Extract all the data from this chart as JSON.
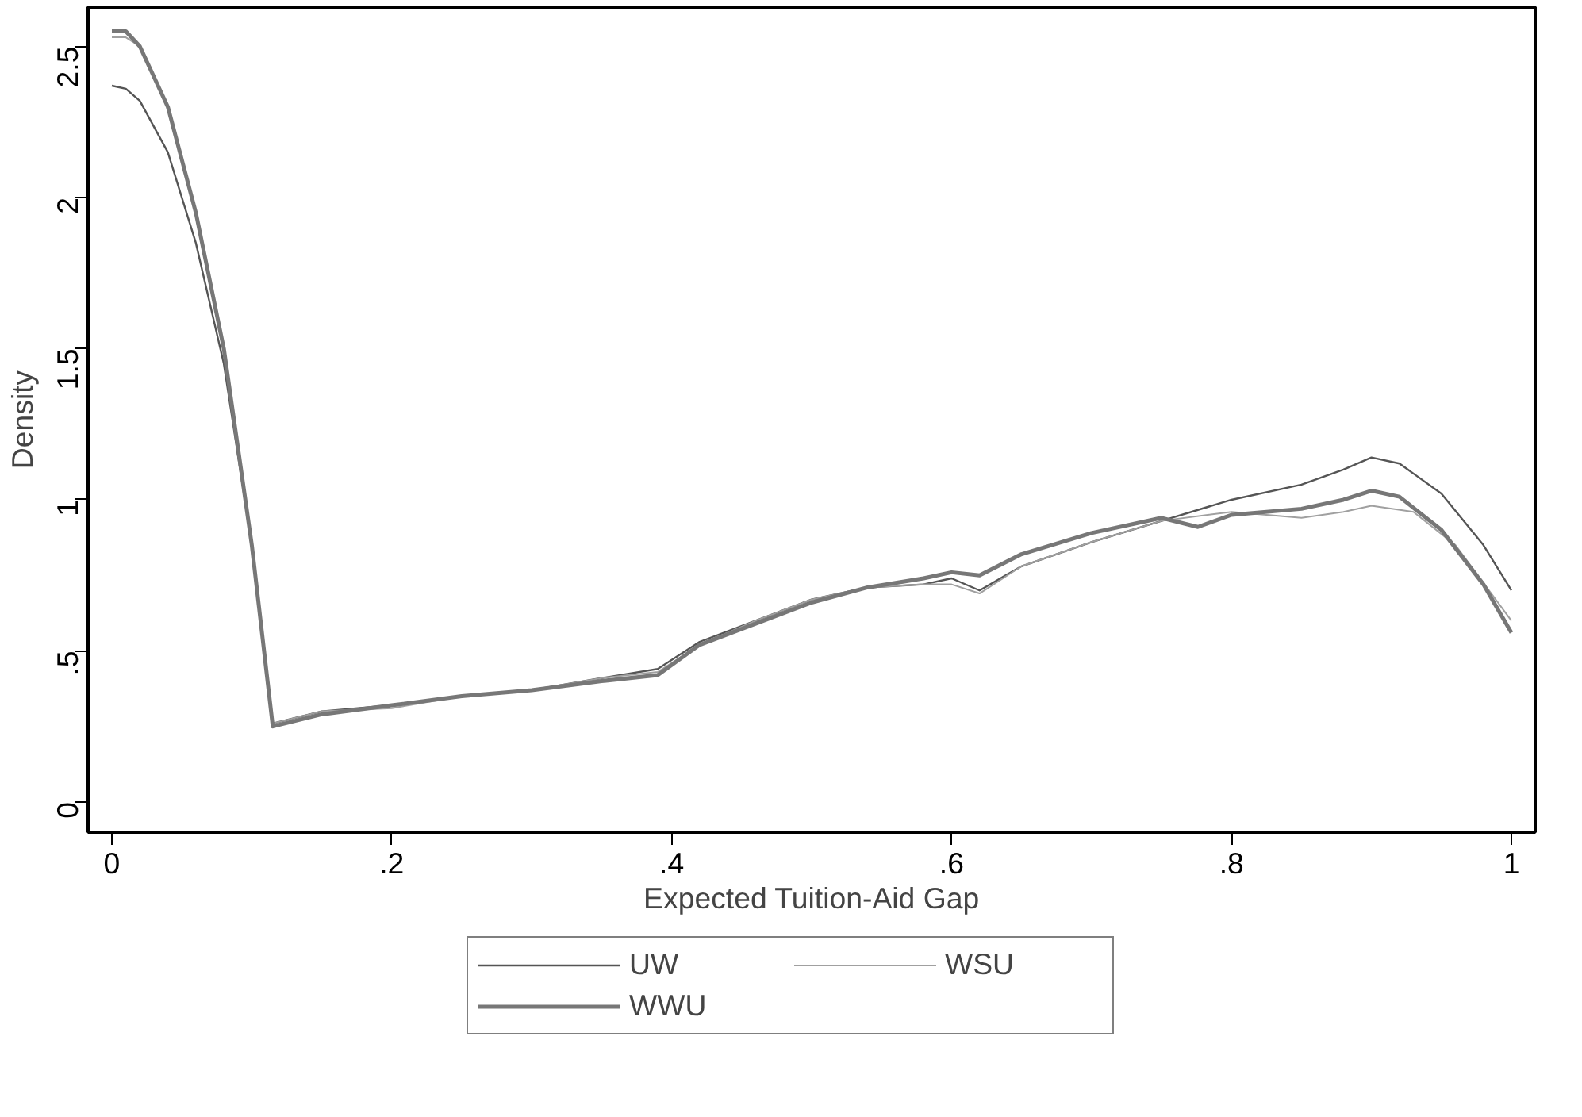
{
  "chart_data": {
    "type": "line",
    "xlabel": "Expected Tuition-Aid Gap",
    "ylabel": "Density",
    "xlim": [
      -0.017,
      1.017
    ],
    "ylim": [
      -0.1,
      2.63
    ],
    "xticks": [
      {
        "value": 0,
        "label": "0"
      },
      {
        "value": 0.2,
        "label": ".2"
      },
      {
        "value": 0.4,
        "label": ".4"
      },
      {
        "value": 0.6,
        "label": ".6"
      },
      {
        "value": 0.8,
        "label": ".8"
      },
      {
        "value": 1,
        "label": "1"
      }
    ],
    "yticks": [
      {
        "value": 0,
        "label": "0"
      },
      {
        "value": 0.5,
        "label": ".5"
      },
      {
        "value": 1,
        "label": "1"
      },
      {
        "value": 1.5,
        "label": "1.5"
      },
      {
        "value": 2,
        "label": "2"
      },
      {
        "value": 2.5,
        "label": "2.5"
      }
    ],
    "grid": false,
    "legend": "bottom",
    "line_style": "solid",
    "marker": "none",
    "series": [
      {
        "name": "UW",
        "color": "#555555",
        "x": [
          0,
          0.01,
          0.02,
          0.04,
          0.06,
          0.08,
          0.1,
          0.115,
          0.15,
          0.2,
          0.25,
          0.3,
          0.35,
          0.39,
          0.42,
          0.46,
          0.5,
          0.54,
          0.58,
          0.6,
          0.62,
          0.65,
          0.7,
          0.75,
          0.8,
          0.85,
          0.88,
          0.9,
          0.92,
          0.95,
          0.98,
          1.0
        ],
        "values": [
          2.37,
          2.36,
          2.32,
          2.15,
          1.85,
          1.45,
          0.85,
          0.26,
          0.3,
          0.32,
          0.35,
          0.37,
          0.41,
          0.44,
          0.53,
          0.6,
          0.67,
          0.71,
          0.72,
          0.74,
          0.7,
          0.78,
          0.86,
          0.93,
          1.0,
          1.05,
          1.1,
          1.14,
          1.12,
          1.02,
          0.85,
          0.7
        ]
      },
      {
        "name": "WSU",
        "color": "#a0a0a0",
        "x": [
          0,
          0.01,
          0.02,
          0.04,
          0.06,
          0.08,
          0.1,
          0.115,
          0.15,
          0.2,
          0.25,
          0.3,
          0.35,
          0.39,
          0.42,
          0.46,
          0.5,
          0.54,
          0.58,
          0.6,
          0.62,
          0.65,
          0.7,
          0.75,
          0.8,
          0.85,
          0.88,
          0.9,
          0.93,
          0.96,
          1.0
        ],
        "values": [
          2.53,
          2.53,
          2.5,
          2.3,
          1.95,
          1.5,
          0.85,
          0.26,
          0.3,
          0.31,
          0.35,
          0.37,
          0.41,
          0.43,
          0.52,
          0.6,
          0.67,
          0.71,
          0.72,
          0.72,
          0.69,
          0.78,
          0.86,
          0.93,
          0.96,
          0.94,
          0.96,
          0.98,
          0.96,
          0.85,
          0.6
        ]
      },
      {
        "name": "WWU",
        "color": "#777777",
        "x": [
          0,
          0.01,
          0.02,
          0.04,
          0.06,
          0.08,
          0.1,
          0.115,
          0.15,
          0.2,
          0.25,
          0.3,
          0.35,
          0.39,
          0.42,
          0.46,
          0.5,
          0.54,
          0.58,
          0.6,
          0.62,
          0.65,
          0.7,
          0.75,
          0.776,
          0.8,
          0.85,
          0.88,
          0.9,
          0.92,
          0.95,
          0.98,
          1.0
        ],
        "values": [
          2.55,
          2.55,
          2.5,
          2.3,
          1.95,
          1.5,
          0.85,
          0.25,
          0.29,
          0.32,
          0.35,
          0.37,
          0.4,
          0.42,
          0.52,
          0.59,
          0.66,
          0.71,
          0.74,
          0.76,
          0.75,
          0.82,
          0.89,
          0.94,
          0.91,
          0.95,
          0.97,
          1.0,
          1.03,
          1.01,
          0.9,
          0.72,
          0.56
        ]
      }
    ]
  }
}
